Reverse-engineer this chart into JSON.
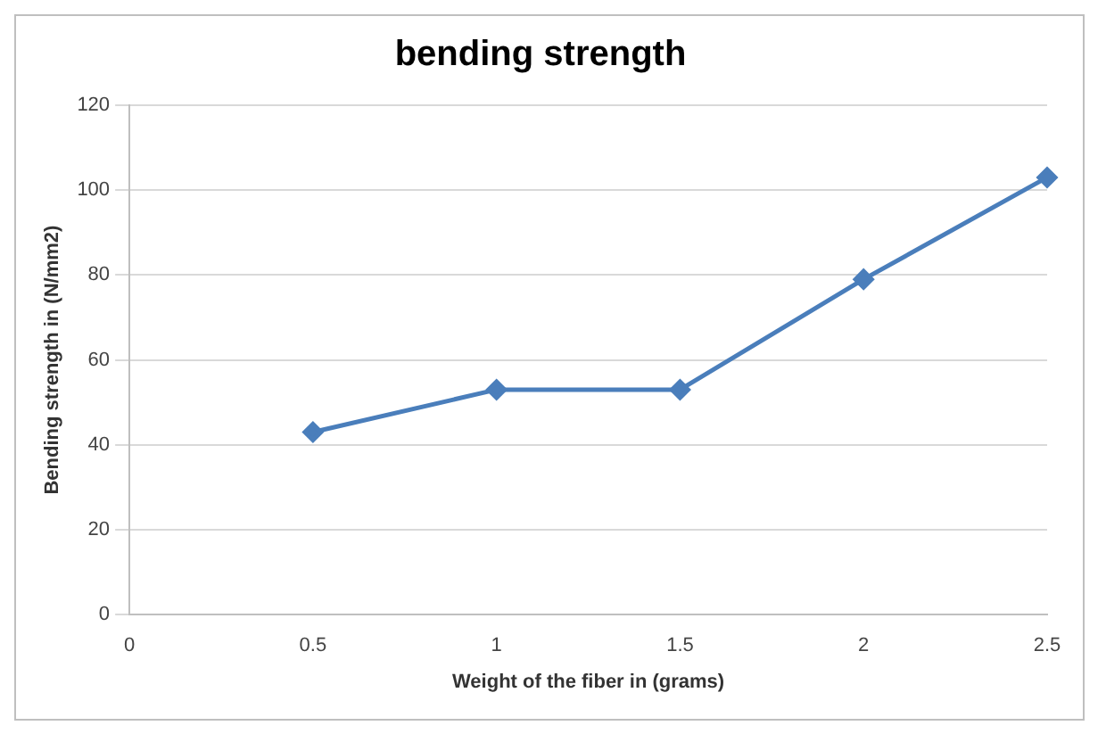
{
  "chart_data": {
    "type": "line",
    "title": "bending strength",
    "xlabel": "Weight of the fiber in (grams)",
    "ylabel": "Bending strength in (N/mm2)",
    "x": [
      0.5,
      1,
      1.5,
      2,
      2.5
    ],
    "series": [
      {
        "color": "#4a7ebb",
        "values": [
          43,
          53,
          53,
          79,
          103
        ]
      }
    ],
    "xlim": [
      0,
      2.5
    ],
    "xticks": [
      0,
      0.5,
      1,
      1.5,
      2,
      2.5
    ],
    "ylim": [
      0,
      120
    ],
    "yticks": [
      0,
      20,
      40,
      60,
      80,
      100,
      120
    ],
    "grid": "y",
    "marker": "diamond",
    "line_style": "solid"
  }
}
